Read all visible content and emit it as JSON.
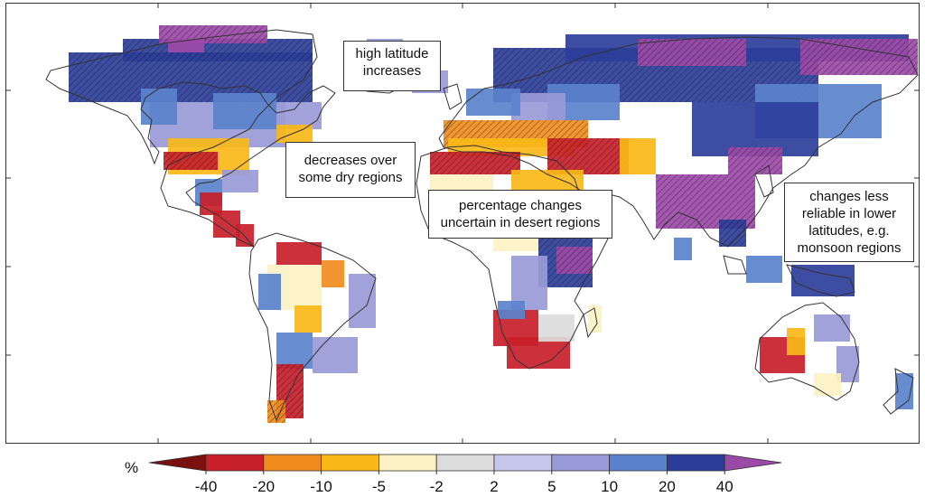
{
  "annotations": {
    "high_latitude": [
      "high latitude",
      "increases"
    ],
    "dry_regions": [
      "decreases over",
      "some dry regions"
    ],
    "desert": [
      "percentage changes",
      "uncertain in desert regions"
    ],
    "monsoon": [
      "changes less",
      "reliable in lower",
      "latitudes, e.g.",
      "monsoon regions"
    ]
  },
  "legend": {
    "unit": "%",
    "ticks": [
      "-40",
      "-20",
      "-10",
      "-5",
      "-2",
      "2",
      "5",
      "10",
      "20",
      "40"
    ],
    "bins": [
      {
        "range": "< -40",
        "color": "#7a1010"
      },
      {
        "range": "-40 to -20",
        "color": "#c8202a"
      },
      {
        "range": "-20 to -10",
        "color": "#f08c1e"
      },
      {
        "range": "-10 to -5",
        "color": "#f8b818"
      },
      {
        "range": "-5 to -2",
        "color": "#fdf2c4"
      },
      {
        "range": "-2 to 2",
        "color": "#dcdcdc"
      },
      {
        "range": "2 to 5",
        "color": "#c6c6ec"
      },
      {
        "range": "5 to 10",
        "color": "#9a9ad8"
      },
      {
        "range": "10 to 20",
        "color": "#5a82cc"
      },
      {
        "range": "20 to 40",
        "color": "#2d3e9a"
      },
      {
        "range": "> 40",
        "color": "#9c4aa8"
      }
    ]
  },
  "colors": {
    "land_outline": "#333333",
    "ocean": "#ffffff",
    "hatch": "#111111"
  }
}
